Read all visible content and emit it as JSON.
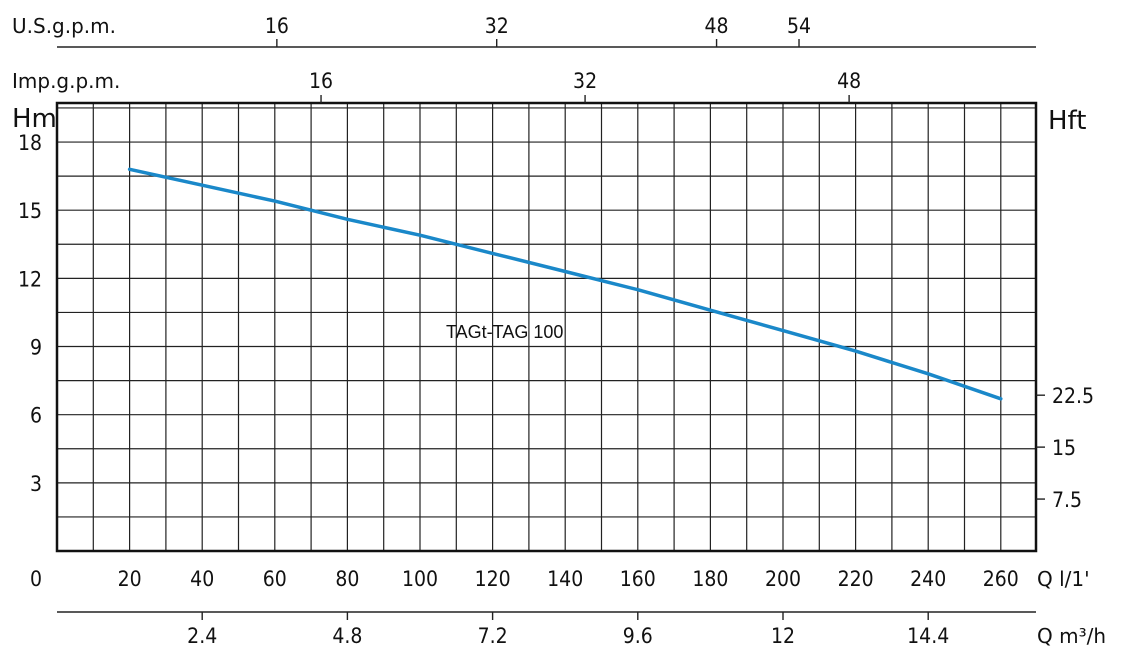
{
  "chart_data": {
    "type": "line",
    "series_label": "TAGt-TAG 100",
    "color": "#1a88c9",
    "x_unit": "Q l/1'",
    "y_unit_left": "Hm",
    "y_unit_right": "Hft",
    "xlim": [
      0,
      270
    ],
    "ylim": [
      0,
      20.5
    ],
    "grid": true,
    "x_ticks": [
      "0",
      "20",
      "40",
      "60",
      "80",
      "100",
      "120",
      "140",
      "160",
      "180",
      "200",
      "220",
      "240",
      "260"
    ],
    "y_ticks_left": [
      "3",
      "6",
      "9",
      "12",
      "15",
      "18"
    ],
    "y_ticks_right": [
      "7.5",
      "15",
      "22.5"
    ],
    "series": [
      {
        "name": "TAGt-TAG 100",
        "x": [
          20,
          40,
          60,
          80,
          100,
          120,
          140,
          160,
          180,
          200,
          220,
          240,
          260
        ],
        "y": [
          16.8,
          16.1,
          15.4,
          14.6,
          13.9,
          13.1,
          12.3,
          11.5,
          10.6,
          9.7,
          8.8,
          7.8,
          6.7
        ]
      }
    ],
    "secondary_axes": [
      {
        "unit": "U.S.g.p.m.",
        "position": "top",
        "ticks": [
          "16",
          "32",
          "48",
          "54"
        ]
      },
      {
        "unit": "Imp.g.p.m.",
        "position": "top",
        "ticks": [
          "16",
          "32",
          "48"
        ]
      },
      {
        "unit": "Q m³/h",
        "position": "bottom",
        "ticks": [
          "2.4",
          "4.8",
          "7.2",
          "9.6",
          "12",
          "14.4"
        ]
      }
    ]
  }
}
